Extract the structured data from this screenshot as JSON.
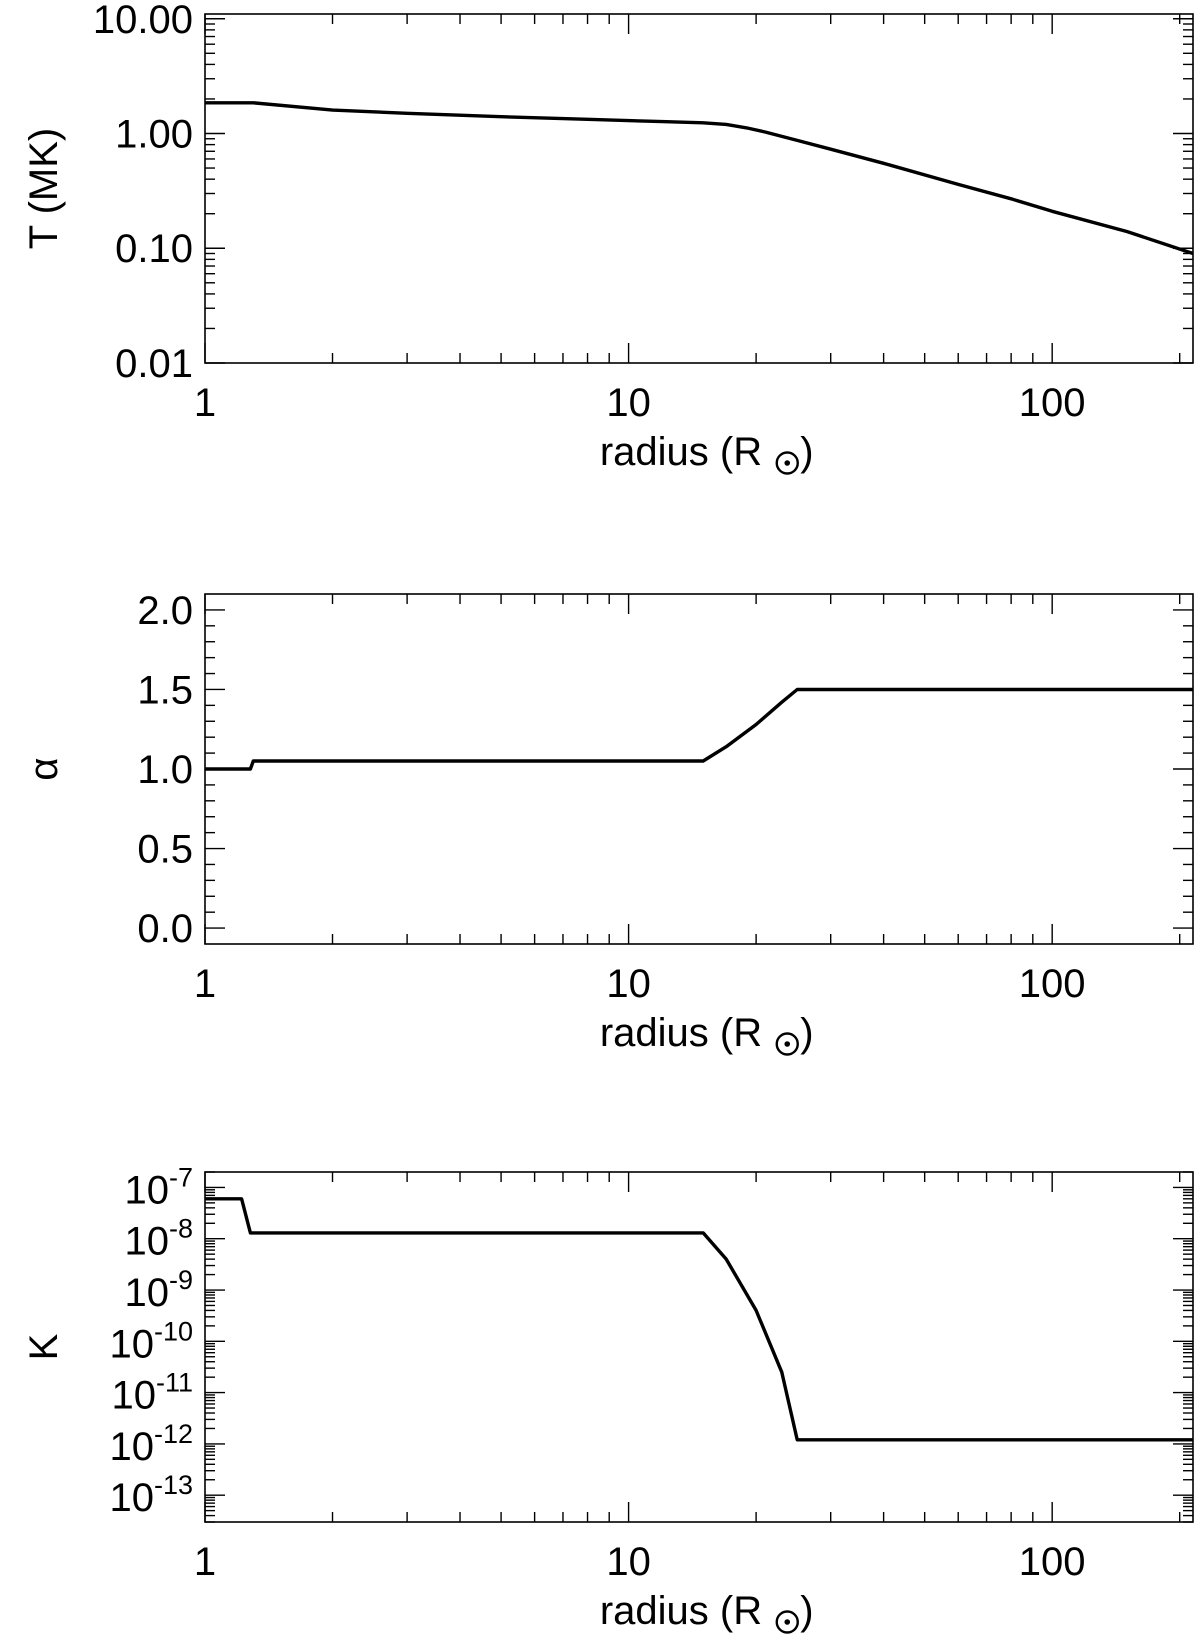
{
  "chart_data": [
    {
      "type": "line",
      "xscale": "log",
      "yscale": "log",
      "xlim": [
        1,
        215
      ],
      "ylim": [
        0.01,
        11
      ],
      "xlabel": "radius (R",
      "ylabel": "T (MK)",
      "xticks": [
        {
          "v": 1,
          "label": "1"
        },
        {
          "v": 10,
          "label": "10"
        },
        {
          "v": 100,
          "label": "100"
        }
      ],
      "yticks": [
        {
          "v": 0.01,
          "label": "0.01"
        },
        {
          "v": 0.1,
          "label": "0.10"
        },
        {
          "v": 1,
          "label": "1.00"
        },
        {
          "v": 10,
          "label": "10.00"
        }
      ],
      "series": [
        {
          "x": [
            1,
            1.15,
            1.3,
            2,
            3,
            5,
            8,
            12,
            15,
            17,
            19,
            21,
            25,
            30,
            40,
            60,
            80,
            100,
            150,
            215
          ],
          "y": [
            1.85,
            1.85,
            1.85,
            1.6,
            1.5,
            1.4,
            1.33,
            1.27,
            1.24,
            1.2,
            1.12,
            1.03,
            0.87,
            0.73,
            0.55,
            0.36,
            0.27,
            0.21,
            0.14,
            0.09
          ]
        }
      ]
    },
    {
      "type": "line",
      "xscale": "log",
      "yscale": "linear",
      "xlim": [
        1,
        215
      ],
      "ylim": [
        -0.1,
        2.1
      ],
      "xlabel": "radius (R",
      "ylabel": "α",
      "xticks": [
        {
          "v": 1,
          "label": "1"
        },
        {
          "v": 10,
          "label": "10"
        },
        {
          "v": 100,
          "label": "100"
        }
      ],
      "yticks": [
        {
          "v": 0.0,
          "label": "0.0"
        },
        {
          "v": 0.5,
          "label": "0.5"
        },
        {
          "v": 1.0,
          "label": "1.0"
        },
        {
          "v": 1.5,
          "label": "1.5"
        },
        {
          "v": 2.0,
          "label": "2.0"
        }
      ],
      "series": [
        {
          "x": [
            1,
            1.28,
            1.3,
            2,
            5,
            10,
            15,
            17,
            20,
            23,
            25,
            50,
            100,
            215
          ],
          "y": [
            1.0,
            1.0,
            1.05,
            1.05,
            1.05,
            1.05,
            1.05,
            1.14,
            1.28,
            1.42,
            1.5,
            1.5,
            1.5,
            1.5
          ]
        }
      ]
    },
    {
      "type": "line",
      "xscale": "log",
      "yscale": "log",
      "xlim": [
        1,
        215
      ],
      "ylim": [
        3e-14,
        2e-07
      ],
      "xlabel": "radius (R",
      "ylabel": "K",
      "xticks": [
        {
          "v": 1,
          "label": "1"
        },
        {
          "v": 10,
          "label": "10"
        },
        {
          "v": 100,
          "label": "100"
        }
      ],
      "yticks": [
        {
          "v": 1e-13,
          "base": "10",
          "exp": "-13"
        },
        {
          "v": 1e-12,
          "base": "10",
          "exp": "-12"
        },
        {
          "v": 1e-11,
          "base": "10",
          "exp": "-11"
        },
        {
          "v": 1e-10,
          "base": "10",
          "exp": "-10"
        },
        {
          "v": 1e-09,
          "base": "10",
          "exp": "-9"
        },
        {
          "v": 1e-08,
          "base": "10",
          "exp": "-8"
        },
        {
          "v": 1e-07,
          "base": "10",
          "exp": "-7"
        }
      ],
      "series": [
        {
          "x": [
            1,
            1.22,
            1.28,
            2,
            5,
            10,
            15,
            17,
            20,
            23,
            25,
            50,
            100,
            215
          ],
          "y": [
            6e-08,
            6e-08,
            1.3e-08,
            1.3e-08,
            1.3e-08,
            1.3e-08,
            1.3e-08,
            4e-09,
            4e-10,
            2.5e-11,
            1.2e-12,
            1.2e-12,
            1.2e-12,
            1.2e-12
          ]
        }
      ]
    }
  ]
}
